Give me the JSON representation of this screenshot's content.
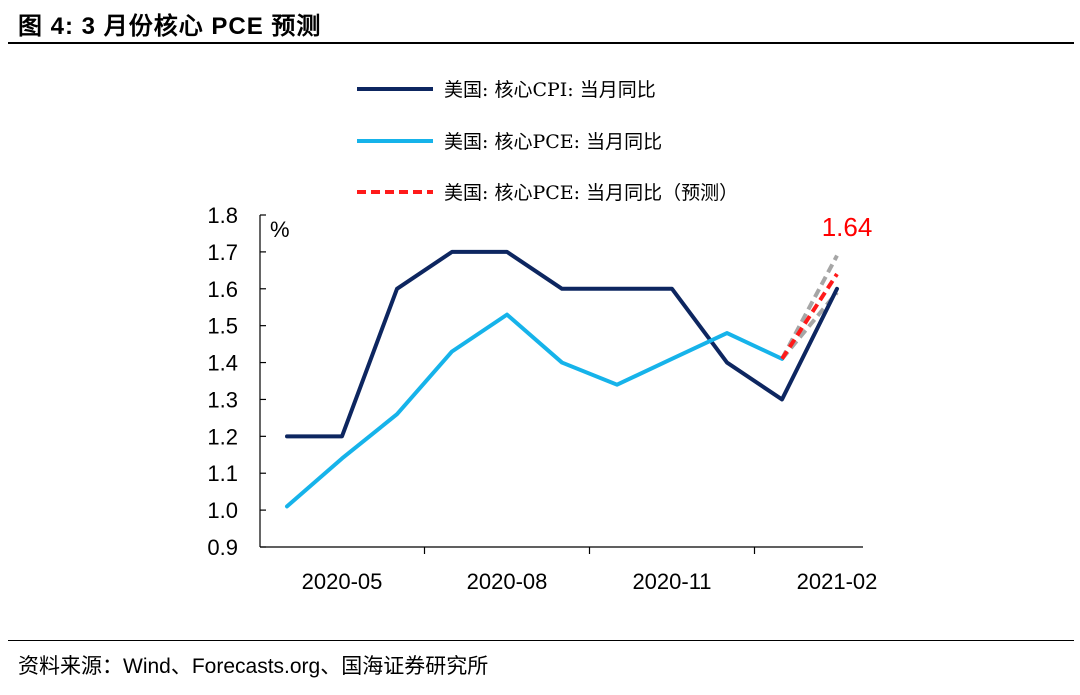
{
  "figure": {
    "title": "图 4:  3 月份核心 PCE 预测",
    "source": "资料来源：Wind、Forecasts.org、国海证券研究所"
  },
  "chart_data": {
    "type": "line",
    "ylabel": "%",
    "ylim": [
      0.9,
      1.8
    ],
    "yticks": [
      "1.8",
      "1.7",
      "1.6",
      "1.5",
      "1.4",
      "1.3",
      "1.2",
      "1.1",
      "1.0",
      "0.9"
    ],
    "x": [
      "2020-04",
      "2020-05",
      "2020-06",
      "2020-07",
      "2020-08",
      "2020-09",
      "2020-10",
      "2020-11",
      "2020-12",
      "2021-01",
      "2021-02",
      "2021-03"
    ],
    "xtick_labels": [
      "2020-05",
      "2020-08",
      "2020-11",
      "2021-02"
    ],
    "legend_position": "top",
    "series": [
      {
        "name": "美国: 核心CPI: 当月同比",
        "color": "#0d2660",
        "style": "solid",
        "values": [
          1.2,
          1.2,
          1.6,
          1.7,
          1.7,
          1.6,
          1.6,
          1.6,
          1.4,
          1.3,
          1.6,
          null
        ]
      },
      {
        "name": "美国: 核心PCE: 当月同比",
        "color": "#16b3ea",
        "style": "solid",
        "values": [
          1.01,
          1.14,
          1.26,
          1.43,
          1.53,
          1.4,
          1.34,
          1.41,
          1.48,
          1.41,
          null,
          null
        ]
      },
      {
        "name": "美国: 核心PCE: 当月同比（预测）",
        "color": "#ff1a1a",
        "style": "dashed",
        "values": [
          null,
          null,
          null,
          null,
          null,
          null,
          null,
          null,
          null,
          1.41,
          1.64,
          null
        ]
      }
    ],
    "forecast_bands": {
      "color": "#a6a6a6",
      "upper": [
        null,
        null,
        null,
        null,
        null,
        null,
        null,
        null,
        null,
        1.41,
        1.69,
        null
      ],
      "lower": [
        null,
        null,
        null,
        null,
        null,
        null,
        null,
        null,
        null,
        1.41,
        1.59,
        null
      ]
    },
    "annotations": [
      {
        "text": "1.64",
        "color": "#ff0000",
        "x": "2021-02",
        "y": 1.64
      }
    ]
  }
}
